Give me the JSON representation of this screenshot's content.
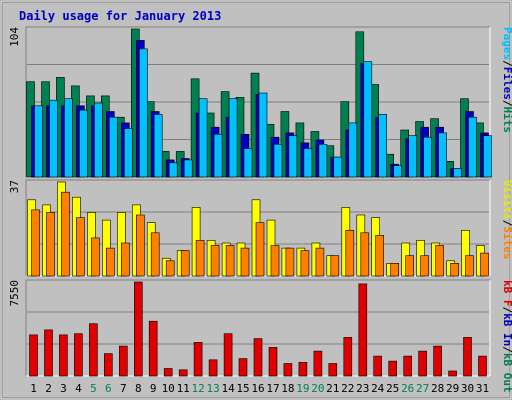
{
  "chart_data": [
    {
      "type": "bar",
      "title": "Daily usage for January 2013",
      "ymax_label": "104",
      "categories": [
        "1",
        "2",
        "3",
        "4",
        "5",
        "6",
        "7",
        "8",
        "9",
        "10",
        "11",
        "12",
        "13",
        "14",
        "15",
        "16",
        "17",
        "18",
        "19",
        "20",
        "21",
        "22",
        "23",
        "24",
        "25",
        "26",
        "27",
        "28",
        "29",
        "30",
        "31"
      ],
      "weekend_days": [
        "5",
        "6",
        "12",
        "13",
        "19",
        "20",
        "26",
        "27"
      ],
      "ylim": [
        0,
        104
      ],
      "right_label": {
        "parts": [
          {
            "text": "Pages",
            "color": "#00c0ff"
          },
          {
            "text": "/",
            "color": "#000000"
          },
          {
            "text": "Files",
            "color": "#0000c0"
          },
          {
            "text": "/",
            "color": "#000000"
          },
          {
            "text": "Hits",
            "color": "#008050"
          }
        ]
      },
      "series": [
        {
          "name": "Hits",
          "color": "#008050",
          "values": [
            67,
            67,
            70,
            64,
            57,
            57,
            42,
            104,
            53,
            18,
            18,
            69,
            45,
            60,
            56,
            73,
            37,
            46,
            38,
            32,
            22,
            53,
            102,
            65,
            16,
            33,
            39,
            41,
            11,
            55,
            38
          ]
        },
        {
          "name": "Files",
          "color": "#0000c0",
          "values": [
            50,
            50,
            50,
            50,
            50,
            46,
            38,
            96,
            46,
            12,
            13,
            45,
            35,
            42,
            30,
            58,
            28,
            31,
            24,
            26,
            14,
            33,
            80,
            42,
            9,
            27,
            35,
            35,
            6,
            46,
            31
          ]
        },
        {
          "name": "Pages",
          "color": "#00c0ff",
          "values": [
            50,
            54,
            55,
            47,
            52,
            42,
            34,
            90,
            44,
            10,
            12,
            55,
            30,
            55,
            20,
            59,
            23,
            29,
            20,
            23,
            14,
            38,
            81,
            44,
            8,
            29,
            28,
            31,
            6,
            42,
            29
          ]
        }
      ]
    },
    {
      "type": "bar",
      "ymax_label": "37",
      "ylim": [
        0,
        37
      ],
      "right_label": {
        "parts": [
          {
            "text": "Visits",
            "color": "#e8e800"
          },
          {
            "text": "/",
            "color": "#000000"
          },
          {
            "text": "Sites",
            "color": "#ff8000"
          }
        ]
      },
      "series": [
        {
          "name": "Visits",
          "color": "#ffff00",
          "values": [
            30,
            28,
            37,
            31,
            25,
            22,
            25,
            28,
            21,
            7,
            10,
            27,
            14,
            13,
            13,
            30,
            22,
            11,
            11,
            13,
            8,
            27,
            24,
            23,
            5,
            13,
            14,
            13,
            6,
            18,
            12
          ]
        },
        {
          "name": "Sites",
          "color": "#ff8000",
          "values": [
            26,
            25,
            33,
            23,
            15,
            11,
            13,
            24,
            17,
            6,
            10,
            14,
            12,
            12,
            11,
            21,
            12,
            11,
            10,
            11,
            8,
            18,
            17,
            16,
            5,
            8,
            8,
            12,
            5,
            8,
            9
          ]
        }
      ]
    },
    {
      "type": "bar",
      "ymax_label": "7550",
      "ylim": [
        0,
        7550
      ],
      "right_label": {
        "parts": [
          {
            "text": "kB F",
            "color": "#e00000"
          },
          {
            "text": "/",
            "color": "#000000"
          },
          {
            "text": "kB In",
            "color": "#0000c0"
          },
          {
            "text": "/",
            "color": "#000000"
          },
          {
            "text": "kB Out",
            "color": "#008050"
          }
        ]
      },
      "series": [
        {
          "name": "kB F",
          "color": "#e00000",
          "values": [
            3300,
            3700,
            3300,
            3400,
            4200,
            1800,
            2400,
            7550,
            4400,
            600,
            500,
            2700,
            1300,
            3400,
            1400,
            3000,
            2300,
            1000,
            1100,
            2000,
            1000,
            3100,
            7400,
            1600,
            1200,
            1600,
            2000,
            2400,
            400,
            3100,
            1600
          ]
        }
      ]
    }
  ]
}
